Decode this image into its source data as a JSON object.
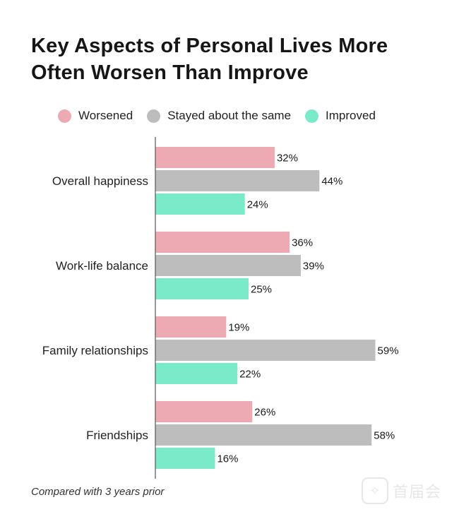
{
  "chart_data": {
    "type": "bar",
    "orientation": "horizontal",
    "title": "Key Aspects of Personal Lives More Often Worsen Than Improve",
    "categories": [
      "Overall happiness",
      "Work-life balance",
      "Family relationships",
      "Friendships"
    ],
    "series": [
      {
        "name": "Worsened",
        "color": "#eeaab2",
        "values": [
          32,
          36,
          19,
          26
        ]
      },
      {
        "name": "Stayed about the same",
        "color": "#bdbdbd",
        "values": [
          44,
          39,
          59,
          58
        ]
      },
      {
        "name": "Improved",
        "color": "#7aeac8",
        "values": [
          24,
          25,
          22,
          16
        ]
      }
    ],
    "value_suffix": "%",
    "xlim": [
      0,
      60
    ],
    "legend_position": "top",
    "grid": false,
    "note": "Compared with 3 years prior"
  },
  "watermark": {
    "glyph": "✧",
    "text": "首届会"
  }
}
